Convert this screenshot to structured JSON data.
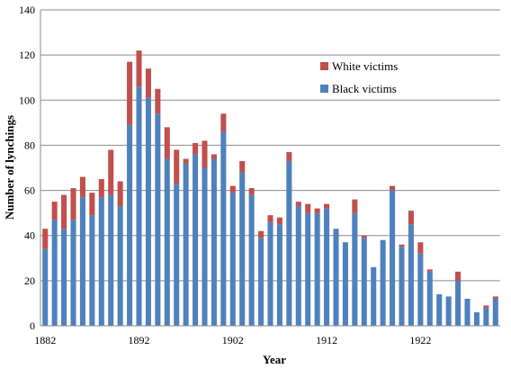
{
  "chart_data": {
    "type": "bar",
    "stacked": true,
    "xlabel": "Year",
    "ylabel": "Number of lynchings",
    "ylim": [
      0,
      140
    ],
    "yticks": [
      0,
      20,
      40,
      60,
      80,
      100,
      120,
      140
    ],
    "xticks": [
      "1882",
      "1892",
      "1902",
      "1912",
      "1922"
    ],
    "x": [
      1882,
      1883,
      1884,
      1885,
      1886,
      1887,
      1888,
      1889,
      1890,
      1891,
      1892,
      1893,
      1894,
      1895,
      1896,
      1897,
      1898,
      1899,
      1900,
      1901,
      1902,
      1903,
      1904,
      1905,
      1906,
      1907,
      1908,
      1909,
      1910,
      1911,
      1912,
      1913,
      1914,
      1915,
      1916,
      1917,
      1918,
      1919,
      1920,
      1921,
      1922,
      1923,
      1924,
      1925,
      1926,
      1927,
      1928,
      1929,
      1930
    ],
    "legend_position": "right",
    "grid": true,
    "series": [
      {
        "name": "Black victims",
        "color": "#4f81bd",
        "values": [
          34,
          47,
          43,
          47,
          57,
          49,
          57,
          58,
          53,
          89,
          106,
          101,
          94,
          74,
          63,
          72,
          76,
          70,
          74,
          86,
          59,
          68,
          58,
          39,
          46,
          45,
          73,
          53,
          50,
          50,
          52,
          43,
          37,
          50,
          39,
          26,
          38,
          60,
          35,
          45,
          32,
          24,
          14,
          13,
          20,
          12,
          6,
          8,
          12
        ]
      },
      {
        "name": "White victims",
        "color": "#c0504d",
        "values": [
          9,
          8,
          15,
          14,
          9,
          10,
          8,
          20,
          11,
          28,
          16,
          13,
          11,
          14,
          15,
          2,
          5,
          12,
          2,
          8,
          3,
          5,
          3,
          3,
          3,
          3,
          4,
          2,
          4,
          2,
          2,
          0,
          0,
          6,
          1,
          0,
          0,
          2,
          1,
          6,
          5,
          1,
          0,
          0,
          4,
          0,
          0,
          1,
          1
        ]
      }
    ]
  }
}
